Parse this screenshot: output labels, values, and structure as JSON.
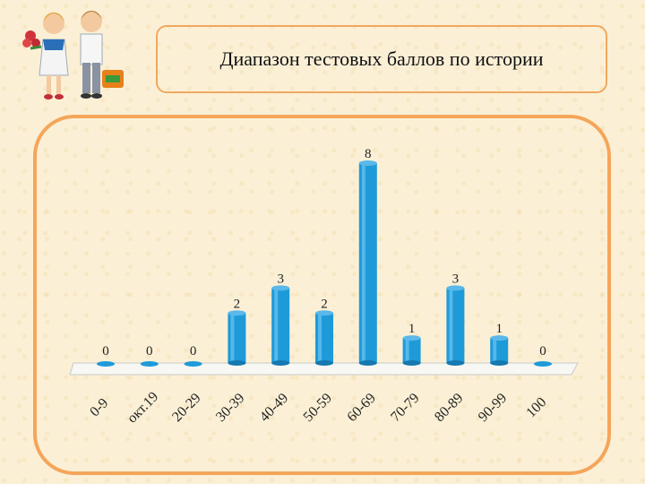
{
  "slide": {
    "title": "Диапазон тестовых баллов по истории"
  },
  "chart_data": {
    "type": "bar",
    "title": "",
    "xlabel": "",
    "ylabel": "",
    "categories": [
      "0-9",
      "окт.19",
      "20-29",
      "30-39",
      "40-49",
      "50-59",
      "60-69",
      "70-79",
      "80-89",
      "90-99",
      "100"
    ],
    "values": [
      0,
      0,
      0,
      2,
      3,
      2,
      8,
      1,
      3,
      1,
      0
    ],
    "ylim": [
      0,
      8
    ],
    "grid": false,
    "legend": "none",
    "bar_color": "#1e9ad9"
  },
  "colors": {
    "frame": "#f5a55a",
    "title_border": "#f0a860",
    "background": "#fbf0d6",
    "bar": "#1e9ad9"
  },
  "decor": {
    "illustration": "two-schoolchildren-icon"
  }
}
